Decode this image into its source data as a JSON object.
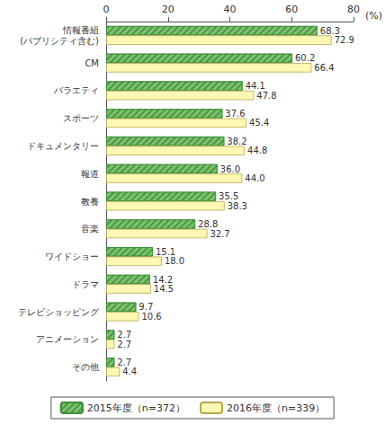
{
  "chart_data": {
    "type": "bar",
    "orientation": "horizontal",
    "categories": [
      "情報番組\n(パブリシティ含む)",
      "CM",
      "バラエティ",
      "スポーツ",
      "ドキュメンタリー",
      "報道",
      "教養",
      "音楽",
      "ワイドショー",
      "ドラマ",
      "テレビショッピング",
      "アニメーション",
      "その他"
    ],
    "series": [
      {
        "name": "2015年度（n=372）",
        "color": "#7cc46c",
        "values": [
          68.3,
          60.2,
          44.1,
          37.6,
          38.2,
          36.0,
          35.5,
          28.8,
          15.1,
          14.2,
          9.7,
          2.7,
          2.7
        ],
        "value_labels": [
          "68.3",
          "60.2",
          "44.1",
          "37.6",
          "38.2",
          "36.0",
          "35.5",
          "28.8",
          "15.1",
          "14.2",
          "9.7",
          "2.7",
          "2.7"
        ]
      },
      {
        "name": "2016年度（n=339）",
        "color": "#fff8b4",
        "values": [
          72.9,
          66.4,
          47.8,
          45.4,
          44.8,
          44.0,
          38.3,
          32.7,
          18.0,
          14.5,
          10.6,
          2.7,
          4.4
        ],
        "value_labels": [
          "72.9",
          "66.4",
          "47.8",
          "45.4",
          "44.8",
          "44.0",
          "38.3",
          "32.7",
          "18.0",
          "14.5",
          "10.6",
          "2.7",
          "4.4"
        ]
      }
    ],
    "xlim": [
      0,
      80
    ],
    "xticks": [
      0,
      20,
      40,
      60,
      80
    ],
    "x_label": "(%)",
    "data_labels": true,
    "grid": false,
    "legend": "bottom"
  }
}
